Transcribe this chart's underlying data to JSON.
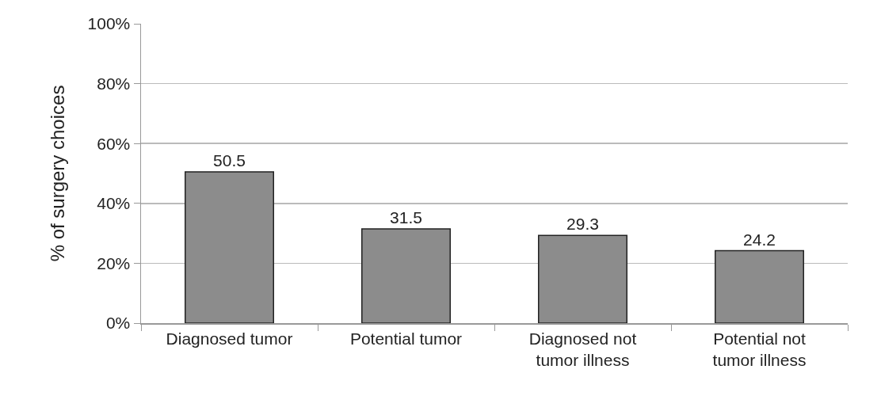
{
  "chart_data": {
    "type": "bar",
    "ylabel": "% of surgery choices",
    "categories": [
      "Diagnosed tumor",
      "Potential tumor",
      "Diagnosed not tumor illness",
      "Potential not tumor illness"
    ],
    "values": [
      50.5,
      31.5,
      29.3,
      24.2
    ],
    "color": "#8c8c8c",
    "ylim": [
      0,
      100
    ],
    "yticks": [
      {
        "value": 0,
        "label": "0%"
      },
      {
        "value": 20,
        "label": "20%"
      },
      {
        "value": 40,
        "label": "40%"
      },
      {
        "value": 60,
        "label": "60%"
      },
      {
        "value": 80,
        "label": "80%"
      },
      {
        "value": 100,
        "label": "100%"
      }
    ],
    "grid": "y",
    "data_labels": true
  }
}
